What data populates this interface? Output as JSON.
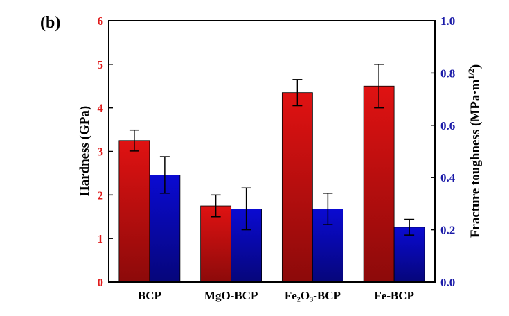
{
  "chart_data": {
    "type": "bar",
    "panel_label": "(b)",
    "categories": [
      "BCP",
      "MgO-BCP",
      "Fe₂O₃-BCP",
      "Fe-BCP"
    ],
    "series": [
      {
        "name": "Hardness",
        "axis": "left",
        "values": [
          3.25,
          1.75,
          4.35,
          4.5
        ],
        "errors": [
          0.24,
          0.25,
          0.3,
          0.5
        ],
        "color_top": "#e01212",
        "color_bottom": "#8c0a0a"
      },
      {
        "name": "Fracture toughness",
        "axis": "right",
        "values": [
          0.41,
          0.28,
          0.28,
          0.21
        ],
        "errors": [
          0.07,
          0.08,
          0.06,
          0.03
        ],
        "color_top": "#0a0ad2",
        "color_bottom": "#06067a"
      }
    ],
    "ylabel": "Hardness (GPa)",
    "ylim": [
      0,
      6
    ],
    "yticks": [
      "0",
      "1",
      "2",
      "3",
      "4",
      "5",
      "6"
    ],
    "y2label": "Fracture toughness (MPa·m",
    "y2label_sup": "1/2",
    "y2label_close": ")",
    "y2lim": [
      0,
      1.0
    ],
    "y2ticks": [
      "0.0",
      "0.2",
      "0.4",
      "0.6",
      "0.8",
      "1.0"
    ],
    "left_axis_color": "#e01b1b",
    "right_axis_color": "#1a1aa8",
    "grid": false
  }
}
